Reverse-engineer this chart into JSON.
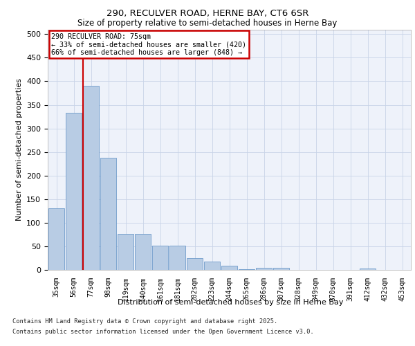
{
  "title1": "290, RECULVER ROAD, HERNE BAY, CT6 6SR",
  "title2": "Size of property relative to semi-detached houses in Herne Bay",
  "xlabel": "Distribution of semi-detached houses by size in Herne Bay",
  "ylabel": "Number of semi-detached properties",
  "footnote1": "Contains HM Land Registry data © Crown copyright and database right 2025.",
  "footnote2": "Contains public sector information licensed under the Open Government Licence v3.0.",
  "annotation_title": "290 RECULVER ROAD: 75sqm",
  "annotation_line1": "← 33% of semi-detached houses are smaller (420)",
  "annotation_line2": "66% of semi-detached houses are larger (848) →",
  "categories": [
    "35sqm",
    "56sqm",
    "77sqm",
    "98sqm",
    "119sqm",
    "140sqm",
    "161sqm",
    "181sqm",
    "202sqm",
    "223sqm",
    "244sqm",
    "265sqm",
    "286sqm",
    "307sqm",
    "328sqm",
    "349sqm",
    "370sqm",
    "391sqm",
    "412sqm",
    "432sqm",
    "453sqm"
  ],
  "values": [
    130,
    333,
    390,
    238,
    77,
    77,
    51,
    51,
    25,
    18,
    9,
    2,
    5,
    5,
    0,
    0,
    0,
    0,
    3,
    0,
    0
  ],
  "bar_color": "#b8cce4",
  "bar_edge_color": "#5b8ec4",
  "vline_color": "#cc0000",
  "vline_x_index": 2,
  "annotation_box_color": "#cc0000",
  "background_color": "#eef2fa",
  "grid_color": "#c8d4e8",
  "ylim": [
    0,
    510
  ],
  "yticks": [
    0,
    50,
    100,
    150,
    200,
    250,
    300,
    350,
    400,
    450,
    500
  ]
}
